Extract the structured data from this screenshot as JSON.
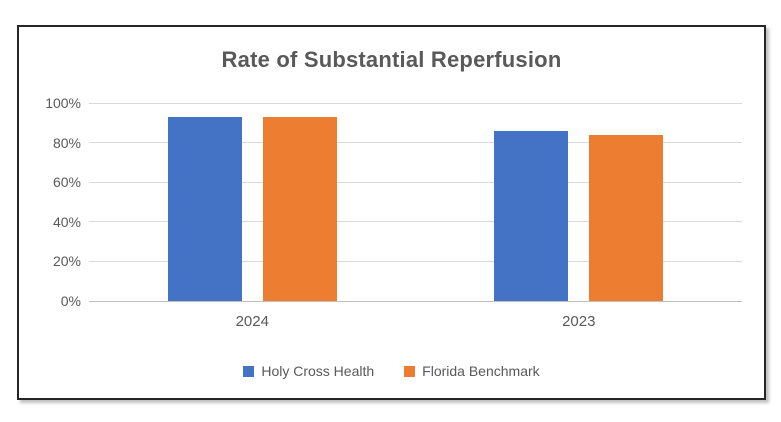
{
  "window": {
    "background": "#ffffff"
  },
  "chart_data": {
    "type": "bar",
    "title": "Rate of Substantial Reperfusion",
    "categories": [
      "2024",
      "2023"
    ],
    "series": [
      {
        "name": "Holy Cross Health",
        "color": "#4472C4",
        "values": [
          93,
          86
        ]
      },
      {
        "name": "Florida Benchmark",
        "color": "#ED7D31",
        "values": [
          93,
          84
        ]
      }
    ],
    "xlabel": "",
    "ylabel": "",
    "ylim": [
      0,
      100
    ],
    "yticks": [
      "0%",
      "20%",
      "40%",
      "60%",
      "80%",
      "100%"
    ],
    "grid": true,
    "legend_position": "bottom"
  },
  "style": {
    "title_color": "#595959",
    "axis_text_color": "#595959",
    "gridline_color": "#D9D9D9",
    "axis_line_color": "#BFBFBF",
    "frame_border_color": "#262626"
  }
}
